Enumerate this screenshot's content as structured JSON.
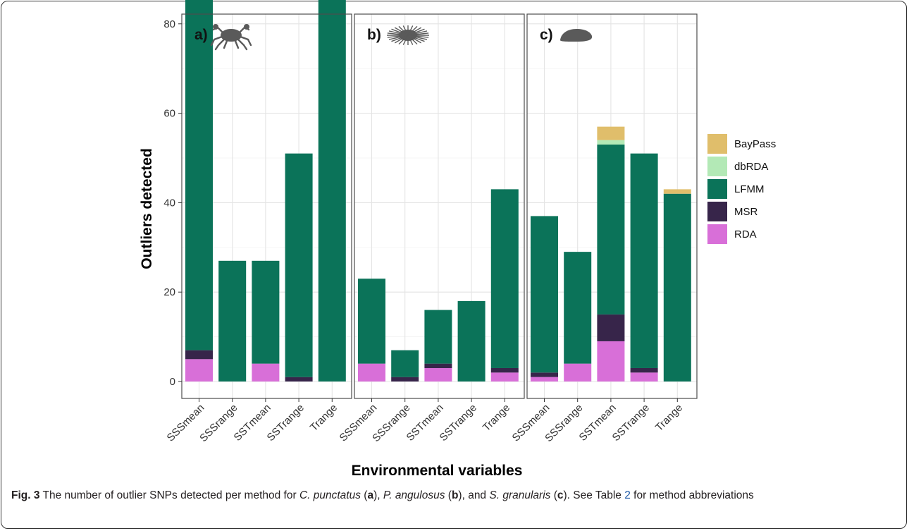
{
  "chart_data": {
    "type": "bar",
    "stacked": true,
    "facet_labels": [
      "a)",
      "b)",
      "c)"
    ],
    "facet_icons": [
      "crab-icon",
      "sea-urchin-icon",
      "limpet-icon"
    ],
    "categories": [
      "SSSmean",
      "SSSrange",
      "SSTmean",
      "SSTrange",
      "Trange"
    ],
    "xlabel": "Environmental variables",
    "ylabel": "Outliers detected",
    "ylim": [
      0,
      100
    ],
    "yticks": [
      0,
      20,
      40,
      60,
      80
    ],
    "grid": true,
    "legend_position": "right",
    "legend": [
      "BayPass",
      "dbRDA",
      "LFMM",
      "MSR",
      "RDA"
    ],
    "colors": {
      "BayPass": "#e0be6b",
      "dbRDA": "#b3e9b6",
      "LFMM": "#0b7359",
      "MSR": "#37254a",
      "RDA": "#d86fd8"
    },
    "stack_order": [
      "RDA",
      "MSR",
      "LFMM",
      "dbRDA",
      "BayPass"
    ],
    "panels": [
      {
        "label": "a)",
        "values": {
          "RDA": [
            5,
            0,
            4,
            0,
            0
          ],
          "MSR": [
            2,
            0,
            0,
            1,
            0
          ],
          "LFMM": [
            83,
            27,
            23,
            50,
            98
          ],
          "dbRDA": [
            0,
            0,
            0,
            0,
            0
          ],
          "BayPass": [
            0,
            0,
            0,
            0,
            0
          ]
        }
      },
      {
        "label": "b)",
        "values": {
          "RDA": [
            4,
            0,
            3,
            0,
            2
          ],
          "MSR": [
            0,
            1,
            1,
            0,
            1
          ],
          "LFMM": [
            19,
            6,
            12,
            18,
            40
          ],
          "dbRDA": [
            0,
            0,
            0,
            0,
            0
          ],
          "BayPass": [
            0,
            0,
            0,
            0,
            0
          ]
        }
      },
      {
        "label": "c)",
        "values": {
          "RDA": [
            1,
            4,
            9,
            2,
            0
          ],
          "MSR": [
            1,
            0,
            6,
            1,
            0
          ],
          "LFMM": [
            35,
            25,
            38,
            48,
            42
          ],
          "dbRDA": [
            0,
            0,
            1,
            0,
            0
          ],
          "BayPass": [
            0,
            0,
            3,
            0,
            1
          ]
        }
      }
    ]
  },
  "caption": {
    "fig_label": "Fig. 3",
    "t1": " The number of outlier SNPs detected per method for ",
    "sp1": "C. punctatus",
    "t2": " (",
    "a": "a",
    "t3": "), ",
    "sp2": "P. angulosus",
    "t4": " (",
    "b": "b",
    "t5": "), and ",
    "sp3": "S. granularis",
    "t6": " (",
    "c": "c",
    "t7": "). See Table ",
    "table_ref": "2",
    "t8": " for method abbreviations"
  }
}
